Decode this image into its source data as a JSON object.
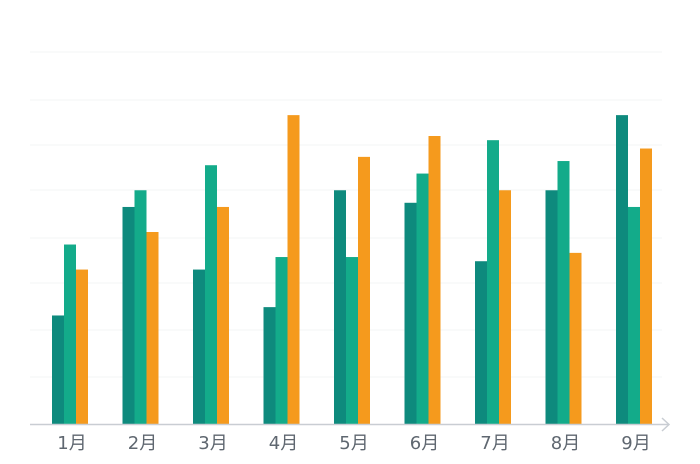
{
  "colors": {
    "series": [
      "#0e8a7d",
      "#13ab8a",
      "#f59a1d"
    ],
    "axis": "#c9cdd3",
    "grid": "#f3f4f6",
    "tick_text": "#5f6770"
  },
  "chart_data": {
    "type": "bar",
    "categories": [
      "1月",
      "2月",
      "3月",
      "4月",
      "5月",
      "6月",
      "7月",
      "8月",
      "9月"
    ],
    "series": [
      {
        "values": [
          26,
          52,
          37,
          28,
          56,
          53,
          39,
          56,
          74
        ]
      },
      {
        "values": [
          43,
          56,
          62,
          40,
          40,
          60,
          68,
          63,
          52
        ]
      },
      {
        "values": [
          37,
          46,
          52,
          74,
          64,
          69,
          56,
          41,
          66
        ]
      }
    ],
    "ylim": [
      0,
      92
    ],
    "grid": true,
    "legend": "none",
    "xlabel": "",
    "ylabel": ""
  }
}
